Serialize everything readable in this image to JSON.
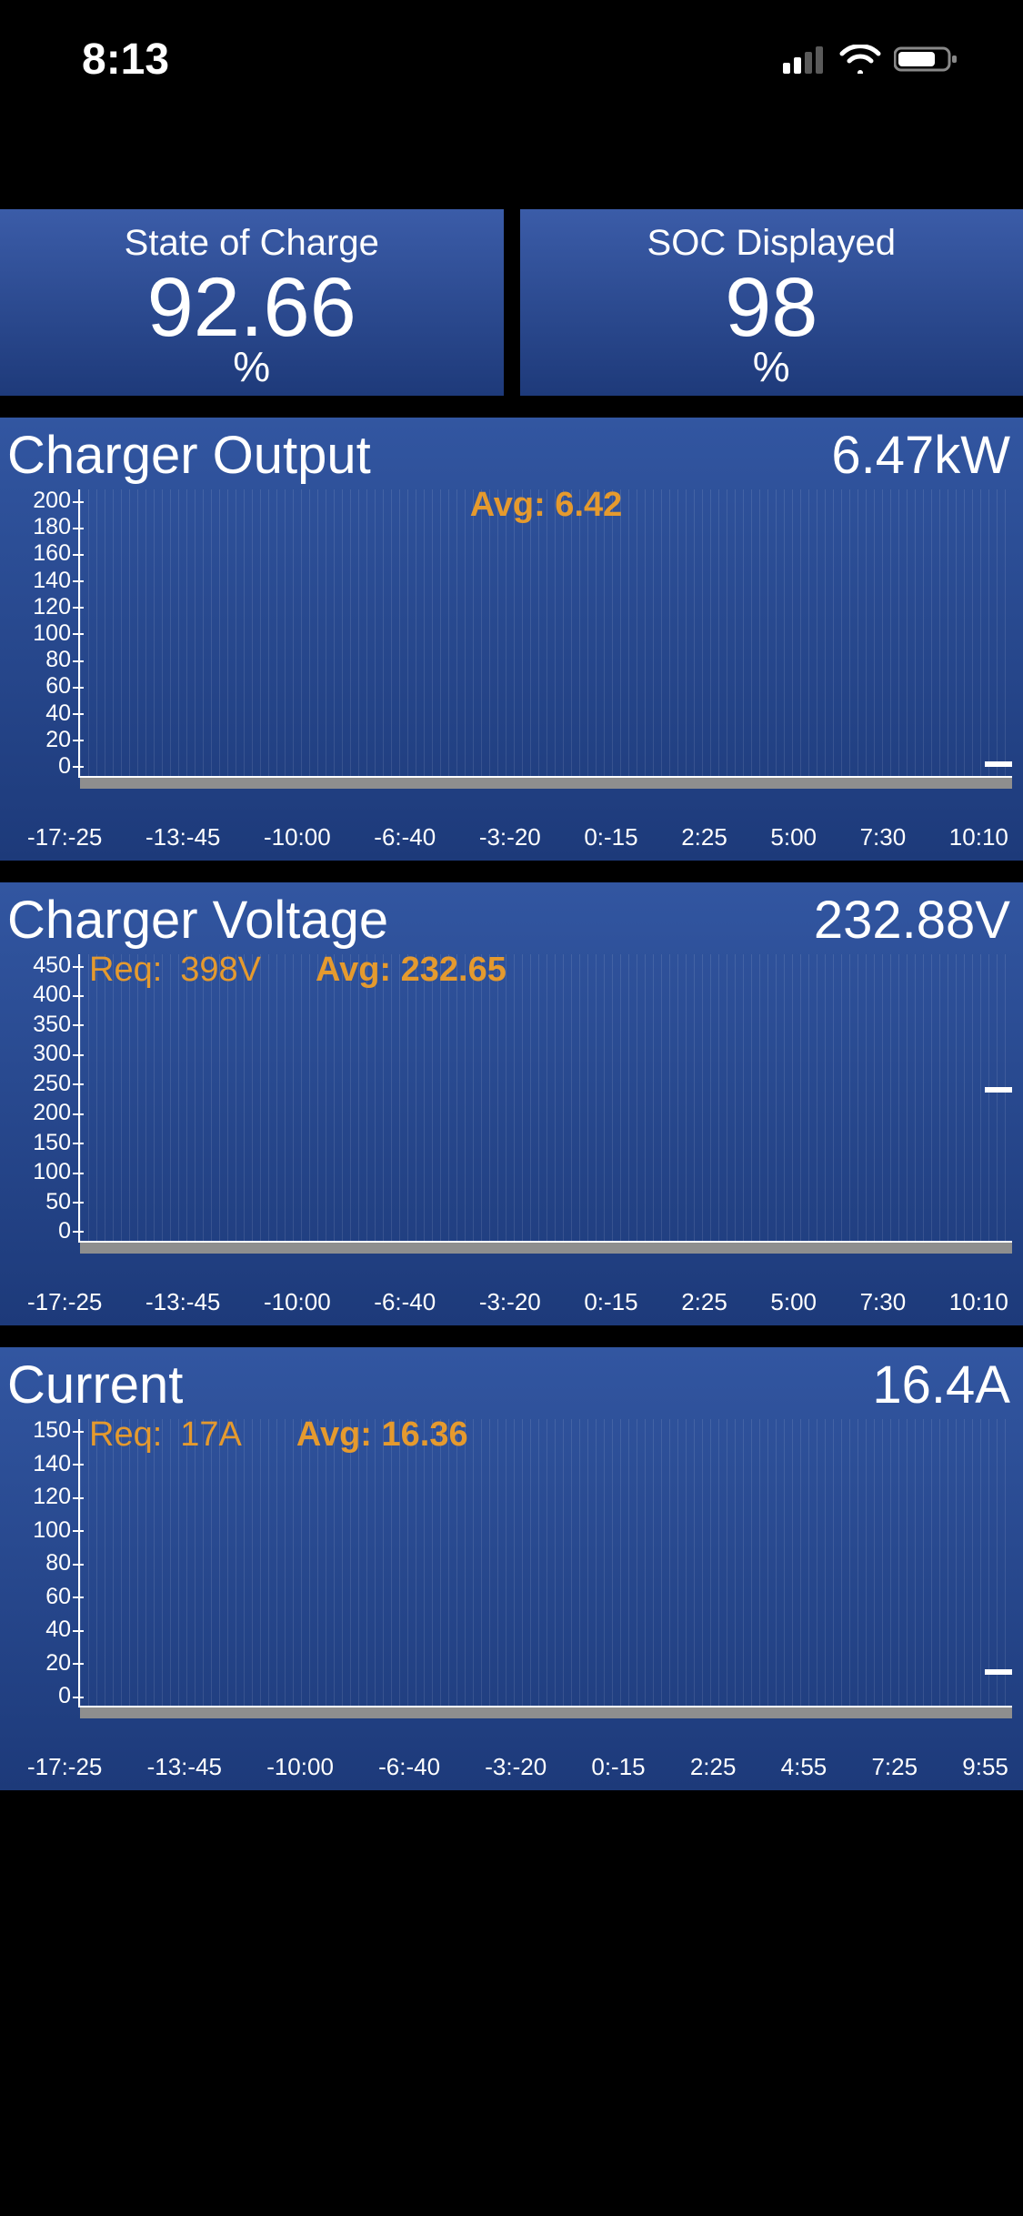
{
  "status_bar": {
    "time": "8:13",
    "cellular_bars": 2,
    "cellular_total_bars": 4,
    "wifi": true,
    "battery_pct": 70
  },
  "colors": {
    "page_bg": "#000000",
    "card_grad_top": "#3b5ca8",
    "card_grad_bot": "#1e3a7a",
    "panel_grad_top": "#3256a1",
    "panel_grad_bot": "#1d3a7a",
    "text": "#ffffff",
    "accent": "#e59a2e",
    "grid_line": "rgba(255,255,255,0.10)",
    "axis_line": "#ffffff",
    "floor": "#8e8e8e"
  },
  "typography": {
    "family": "-apple-system / Helvetica Neue",
    "status_time_pt": 48,
    "card_title_pt": 40,
    "card_value_pt": 92,
    "card_unit_pt": 46,
    "panel_title_pt": 58,
    "panel_value_pt": 58,
    "annot_pt": 38,
    "y_tick_pt": 25,
    "x_tick_pt": 26
  },
  "cards": {
    "soc": {
      "title": "State of Charge",
      "value": "92.66",
      "unit": "%"
    },
    "soc_disp": {
      "title": "SOC Displayed",
      "value": "98",
      "unit": "%"
    }
  },
  "charts": {
    "output": {
      "type": "line",
      "title": "Charger Output",
      "current_value": "6.47kW",
      "avg_label": "Avg: 6.42",
      "req_label": null,
      "req_value": null,
      "y_ticks": [
        "0",
        "20",
        "40",
        "60",
        "80",
        "100",
        "120",
        "140",
        "160",
        "180",
        "200"
      ],
      "y_min": 0,
      "y_max": 200,
      "x_ticks": [
        "-17:-25",
        "-13:-45",
        "-10:00",
        "-6:-40",
        "-3:-20",
        "0:-15",
        "2:25",
        "5:00",
        "7:30",
        "10:10"
      ],
      "live_value_num": 6.47,
      "live_tick_frac": 0.032,
      "series_color": "#ffffff",
      "background_color": "#24458d"
    },
    "voltage": {
      "type": "line",
      "title": "Charger Voltage",
      "current_value": "232.88V",
      "avg_label": "Avg: 232.65",
      "req_label": "Req:",
      "req_value": "398V",
      "y_ticks": [
        "0",
        "50",
        "100",
        "150",
        "200",
        "250",
        "300",
        "350",
        "400",
        "450"
      ],
      "y_min": 0,
      "y_max": 450,
      "x_ticks": [
        "-17:-25",
        "-13:-45",
        "-10:00",
        "-6:-40",
        "-3:-20",
        "0:-15",
        "2:25",
        "5:00",
        "7:30",
        "10:10"
      ],
      "live_value_num": 232.88,
      "live_tick_frac": 0.517,
      "series_color": "#ffffff",
      "background_color": "#24458d"
    },
    "current": {
      "type": "line",
      "title": "Current",
      "current_value": "16.4A",
      "avg_label": "Avg: 16.36",
      "req_label": "Req:",
      "req_value": "17A",
      "y_ticks": [
        "0",
        "20",
        "40",
        "60",
        "80",
        "100",
        "120",
        "140",
        "150"
      ],
      "y_min": 0,
      "y_max": 150,
      "x_ticks": [
        "-17:-25",
        "-13:-45",
        "-10:00",
        "-6:-40",
        "-3:-20",
        "0:-15",
        "2:25",
        "4:55",
        "7:25",
        "9:55"
      ],
      "live_value_num": 16.4,
      "live_tick_frac": 0.109,
      "series_color": "#ffffff",
      "background_color": "#24458d"
    }
  }
}
